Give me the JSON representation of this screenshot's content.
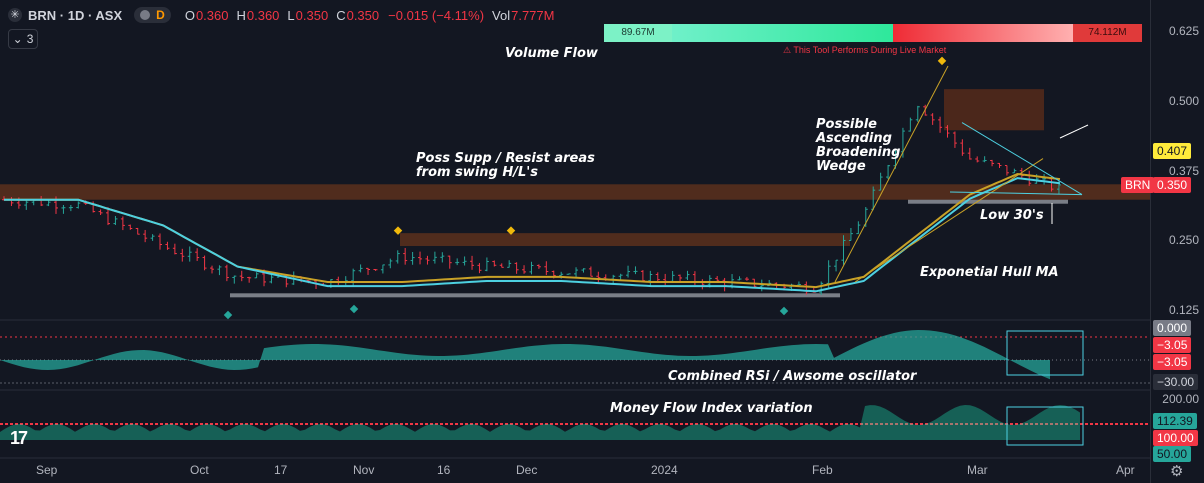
{
  "header": {
    "logo_icon": "asx-logo-icon",
    "symbol": "BRN · 1D · ASX",
    "interval_badge": "D",
    "ohlc": [
      {
        "k": "O",
        "v": "0.360"
      },
      {
        "k": "H",
        "v": "0.360"
      },
      {
        "k": "L",
        "v": "0.350"
      },
      {
        "k": "C",
        "v": "0.350"
      },
      {
        "k": "",
        "v": "−0.015 (−4.11%)"
      },
      {
        "k": "Vol",
        "v": "7.777M"
      }
    ],
    "layers_count": "3"
  },
  "volume_bar": {
    "buy": "89.67M",
    "sell": "74.112M",
    "buy_color": "#26a69a",
    "sell_color": "#f23645"
  },
  "warning": "⚠ This Tool Performs During Live Market",
  "annotations": {
    "volume_flow": "Volume Flow",
    "supp_resist_1": "Poss Supp / Resist areas",
    "supp_resist_2": "from swing H/L's",
    "wedge_1": "Possible",
    "wedge_2": "Ascending",
    "wedge_3": "Broadening",
    "wedge_4": "Wedge",
    "low_30s": "Low 30's",
    "hull_ma": "Exponetial Hull MA",
    "combined_rsi": "Combined RSi / Awsome oscillator",
    "mfi": "Money Flow Index variation"
  },
  "price_axis": {
    "ticks": [
      "0.625",
      "0.500",
      "0.375",
      "0.250",
      "0.125"
    ],
    "tag_407": "0.407",
    "tag_symbol": "BRN",
    "tag_last": "0.350"
  },
  "osc_axis": {
    "top": "0.000",
    "v1": "−3.05",
    "v2": "−3.05",
    "bottom": "−30.00"
  },
  "mfi_axis": {
    "top": "200.00",
    "v1": "112.39",
    "v2": "100.00",
    "bottom": "50.00"
  },
  "time_axis": [
    "Sep",
    "Oct",
    "17",
    "Nov",
    "16",
    "Dec",
    "2024",
    "Feb",
    "Mar",
    "Apr"
  ],
  "colors": {
    "up": "#26a69a",
    "down": "#f23645",
    "hull": "#4dd0e1",
    "sma": "#c9a227",
    "zone": "#7a3a1a"
  },
  "chart_data": {
    "type": "line",
    "title": "BRN · 1D · ASX",
    "xlabel": "",
    "ylabel": "",
    "ylim": [
      0.1,
      0.66
    ],
    "x": [
      "2023-09-01",
      "2023-09-15",
      "2023-10-01",
      "2023-10-15",
      "2023-11-01",
      "2023-11-15",
      "2023-12-01",
      "2023-12-15",
      "2024-01-01",
      "2024-01-15",
      "2024-02-01",
      "2024-02-10",
      "2024-02-20",
      "2024-03-01",
      "2024-03-10",
      "2024-03-18"
    ],
    "series": [
      {
        "values": [
          0.33,
          0.32,
          0.24,
          0.18,
          0.17,
          0.22,
          0.2,
          0.19,
          0.18,
          0.17,
          0.16,
          0.3,
          0.52,
          0.41,
          0.38,
          0.35
        ]
      },
      {
        "values": [
          0.33,
          0.33,
          0.28,
          0.2,
          0.17,
          0.17,
          0.18,
          0.18,
          0.17,
          0.17,
          0.16,
          0.18,
          0.26,
          0.34,
          0.38,
          0.37
        ]
      }
    ]
  }
}
